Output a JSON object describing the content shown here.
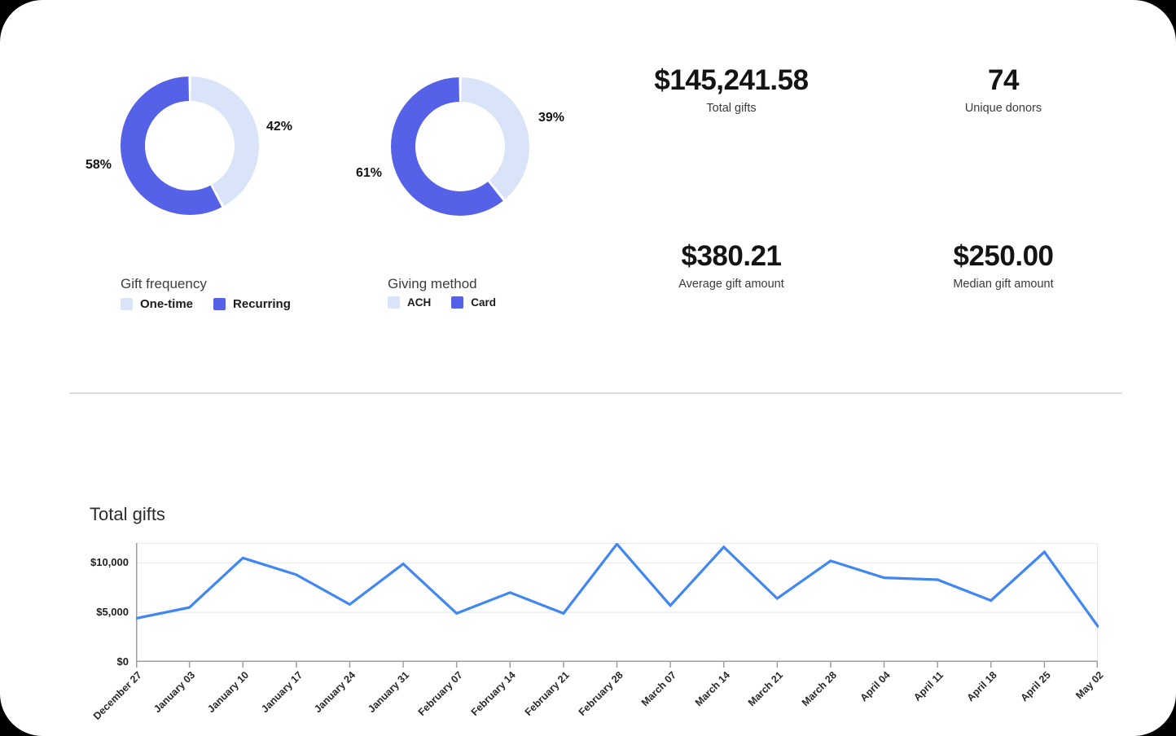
{
  "colors": {
    "primary": "#5561E6",
    "light": "#D9E4F8",
    "line": "#4187F2",
    "grid": "#E8E8E8",
    "axis": "#9E9E9E",
    "divider": "#DCDCDC"
  },
  "stats": [
    {
      "value": "$145,241.58",
      "label": "Total gifts"
    },
    {
      "value": "74",
      "label": "Unique donors"
    },
    {
      "value": "$380.21",
      "label": "Average gift amount"
    },
    {
      "value": "$250.00",
      "label": "Median gift amount"
    }
  ],
  "chart_data": [
    {
      "type": "pie",
      "donut": true,
      "title": "Gift frequency",
      "labels": [
        "One-time",
        "Recurring"
      ],
      "values": [
        42,
        58
      ],
      "value_labels": [
        "42%",
        "58%"
      ],
      "colors": [
        "light",
        "primary"
      ],
      "callouts": {
        "left": "58%",
        "right": "42%"
      },
      "legend_position": "bottom"
    },
    {
      "type": "pie",
      "donut": true,
      "title": "Giving method",
      "labels": [
        "ACH",
        "Card"
      ],
      "values": [
        39,
        61
      ],
      "value_labels": [
        "39%",
        "61%"
      ],
      "colors": [
        "light",
        "primary"
      ],
      "callouts": {
        "left": "61%",
        "right": "39%"
      },
      "legend_position": "bottom"
    },
    {
      "type": "line",
      "title": "Total gifts",
      "x": [
        "December 27",
        "January 03",
        "January 10",
        "January 17",
        "January 24",
        "January 31",
        "February 07",
        "February 14",
        "February 21",
        "February 28",
        "March 07",
        "March 14",
        "March 21",
        "March 28",
        "April 04",
        "April 11",
        "April 18",
        "April 25",
        "May 02"
      ],
      "values": [
        4400,
        5500,
        10500,
        8800,
        5800,
        9900,
        4900,
        7000,
        4900,
        11900,
        5700,
        11600,
        6400,
        10200,
        8500,
        8300,
        6200,
        11100,
        3600
      ],
      "ylim": [
        0,
        12000
      ],
      "yticks": [
        {
          "value": 0,
          "label": "$0"
        },
        {
          "value": 5000,
          "label": "$5,000"
        },
        {
          "value": 10000,
          "label": "$10,000"
        }
      ],
      "grid": true,
      "legend": "none"
    }
  ]
}
